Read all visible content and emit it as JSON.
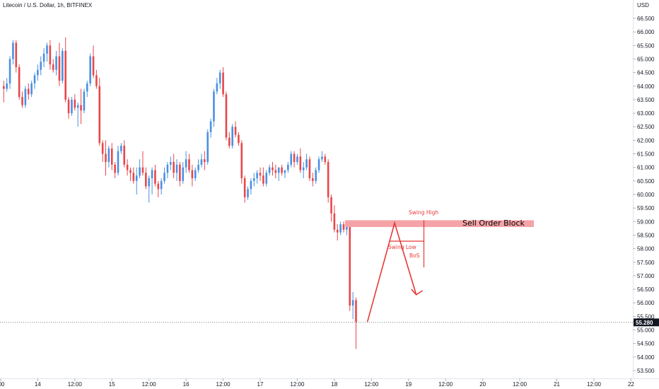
{
  "header": {
    "symbol_line": "Litecoin / U.S. Dollar, 1h, BITFINEX"
  },
  "colors": {
    "up": "#4a90e2",
    "down": "#e8474a",
    "annotation": "#e53935",
    "order_block": "#f5a3a8"
  },
  "chart_data": {
    "type": "candlestick",
    "y_axis": {
      "unit_label": "USD",
      "min": 53.5,
      "max": 66.5,
      "ticks": [
        "53.500",
        "54.000",
        "54.500",
        "55.000",
        "55.500",
        "56.000",
        "56.500",
        "57.000",
        "57.500",
        "58.000",
        "58.500",
        "59.000",
        "59.500",
        "60.000",
        "60.500",
        "61.000",
        "61.500",
        "62.000",
        "62.500",
        "63.000",
        "63.500",
        "64.000",
        "64.500",
        "65.000",
        "65.500",
        "66.000",
        "66.500"
      ]
    },
    "x_axis": {
      "labels": [
        {
          "text": ":00",
          "bar": -1
        },
        {
          "text": "14",
          "bar": 11
        },
        {
          "text": "12:00",
          "bar": 23
        },
        {
          "text": "15",
          "bar": 35
        },
        {
          "text": "12:00",
          "bar": 47
        },
        {
          "text": "16",
          "bar": 59
        },
        {
          "text": "12:00",
          "bar": 71
        },
        {
          "text": "17",
          "bar": 83
        },
        {
          "text": "12:00",
          "bar": 95
        },
        {
          "text": "18",
          "bar": 107
        },
        {
          "text": "12:00",
          "bar": 119
        },
        {
          "text": "19",
          "bar": 131
        },
        {
          "text": "12:00",
          "bar": 143
        },
        {
          "text": "20",
          "bar": 155
        },
        {
          "text": "12:00",
          "bar": 167
        },
        {
          "text": "21",
          "bar": 179
        },
        {
          "text": "12:00",
          "bar": 191
        },
        {
          "text": "22",
          "bar": 203
        }
      ]
    },
    "current_price": 55.28,
    "current_price_label": "55.280",
    "candles": [
      [
        64.0,
        64.2,
        63.4,
        63.9
      ],
      [
        63.9,
        64.3,
        63.8,
        64.1
      ],
      [
        64.1,
        65.1,
        63.9,
        65.0
      ],
      [
        65.0,
        65.7,
        64.8,
        65.6
      ],
      [
        65.6,
        65.7,
        64.5,
        64.7
      ],
      [
        64.7,
        64.8,
        63.5,
        63.6
      ],
      [
        63.6,
        63.8,
        63.2,
        63.3
      ],
      [
        63.3,
        64.0,
        63.2,
        63.9
      ],
      [
        63.9,
        64.1,
        63.5,
        63.7
      ],
      [
        63.7,
        64.2,
        63.6,
        64.1
      ],
      [
        64.1,
        64.5,
        63.9,
        64.4
      ],
      [
        64.4,
        64.8,
        64.2,
        64.6
      ],
      [
        64.6,
        65.1,
        64.4,
        64.9
      ],
      [
        64.9,
        65.4,
        64.7,
        65.2
      ],
      [
        65.2,
        65.6,
        64.9,
        65.5
      ],
      [
        65.5,
        65.7,
        64.6,
        64.8
      ],
      [
        64.8,
        65.0,
        64.5,
        64.6
      ],
      [
        64.6,
        65.3,
        64.4,
        65.1
      ],
      [
        65.1,
        65.6,
        64.0,
        64.2
      ],
      [
        64.2,
        65.4,
        64.1,
        65.3
      ],
      [
        65.3,
        65.8,
        63.4,
        63.5
      ],
      [
        63.5,
        63.6,
        62.8,
        63.0
      ],
      [
        63.0,
        63.6,
        62.9,
        63.5
      ],
      [
        63.5,
        63.7,
        63.1,
        63.2
      ],
      [
        63.2,
        63.4,
        62.5,
        63.3
      ],
      [
        63.3,
        63.9,
        62.6,
        63.1
      ],
      [
        63.1,
        63.9,
        63.0,
        63.8
      ],
      [
        63.8,
        64.2,
        63.6,
        64.1
      ],
      [
        64.1,
        65.2,
        64.0,
        65.1
      ],
      [
        65.1,
        65.5,
        64.3,
        64.4
      ],
      [
        64.4,
        64.6,
        63.9,
        64.0
      ],
      [
        64.0,
        64.3,
        61.8,
        61.9
      ],
      [
        61.9,
        62.0,
        61.2,
        61.5
      ],
      [
        61.5,
        62.0,
        60.7,
        61.2
      ],
      [
        61.2,
        61.8,
        61.0,
        61.7
      ],
      [
        61.7,
        61.9,
        60.9,
        61.1
      ],
      [
        61.1,
        61.2,
        60.6,
        60.8
      ],
      [
        60.8,
        61.8,
        60.7,
        61.6
      ],
      [
        61.6,
        61.9,
        61.5,
        61.8
      ],
      [
        61.8,
        62.0,
        61.0,
        61.1
      ],
      [
        61.1,
        61.3,
        60.7,
        60.9
      ],
      [
        60.9,
        61.0,
        60.5,
        60.8
      ],
      [
        60.8,
        61.0,
        60.4,
        60.5
      ],
      [
        60.5,
        61.0,
        60.0,
        60.7
      ],
      [
        60.7,
        61.3,
        60.6,
        61.0
      ],
      [
        61.0,
        61.6,
        60.7,
        60.8
      ],
      [
        60.8,
        61.0,
        60.2,
        60.3
      ],
      [
        60.3,
        60.7,
        59.7,
        60.6
      ],
      [
        60.6,
        61.0,
        60.0,
        60.9
      ],
      [
        60.9,
        61.1,
        60.3,
        60.4
      ],
      [
        60.4,
        60.5,
        59.9,
        60.2
      ],
      [
        60.2,
        60.6,
        60.0,
        60.5
      ],
      [
        60.5,
        61.0,
        60.4,
        60.8
      ],
      [
        60.8,
        61.2,
        60.6,
        61.1
      ],
      [
        61.1,
        61.4,
        60.9,
        61.2
      ],
      [
        61.2,
        61.5,
        60.6,
        60.8
      ],
      [
        60.8,
        61.3,
        60.5,
        61.1
      ],
      [
        61.1,
        61.2,
        60.3,
        60.5
      ],
      [
        60.5,
        61.2,
        60.4,
        61.0
      ],
      [
        61.0,
        61.6,
        60.8,
        61.3
      ],
      [
        61.3,
        61.5,
        60.8,
        60.9
      ],
      [
        60.9,
        61.1,
        60.3,
        60.6
      ],
      [
        60.6,
        61.0,
        60.5,
        60.9
      ],
      [
        60.9,
        61.3,
        60.8,
        61.1
      ],
      [
        61.1,
        61.5,
        61.0,
        61.3
      ],
      [
        61.3,
        61.6,
        60.9,
        61.2
      ],
      [
        61.2,
        62.4,
        61.1,
        62.3
      ],
      [
        62.3,
        62.8,
        62.1,
        62.7
      ],
      [
        62.7,
        63.9,
        62.5,
        63.8
      ],
      [
        63.8,
        64.3,
        63.7,
        64.1
      ],
      [
        64.1,
        64.6,
        63.9,
        64.5
      ],
      [
        64.5,
        64.7,
        63.6,
        63.7
      ],
      [
        63.7,
        63.8,
        62.0,
        62.1
      ],
      [
        62.1,
        62.3,
        61.7,
        61.8
      ],
      [
        61.8,
        62.6,
        61.7,
        62.5
      ],
      [
        62.5,
        62.7,
        62.1,
        62.2
      ],
      [
        62.2,
        62.3,
        61.8,
        61.9
      ],
      [
        61.9,
        62.0,
        60.4,
        60.6
      ],
      [
        60.6,
        60.7,
        59.7,
        59.9
      ],
      [
        59.9,
        60.3,
        59.8,
        60.2
      ],
      [
        60.2,
        60.6,
        60.0,
        60.5
      ],
      [
        60.5,
        60.8,
        60.3,
        60.6
      ],
      [
        60.6,
        60.9,
        60.4,
        60.8
      ],
      [
        60.8,
        61.0,
        60.5,
        60.7
      ],
      [
        60.7,
        61.0,
        60.3,
        60.4
      ],
      [
        60.4,
        60.9,
        60.3,
        60.8
      ],
      [
        60.8,
        61.1,
        60.7,
        61.0
      ],
      [
        61.0,
        61.2,
        60.7,
        60.9
      ],
      [
        60.9,
        61.1,
        60.6,
        60.8
      ],
      [
        60.8,
        61.0,
        60.5,
        61.0
      ],
      [
        61.0,
        61.1,
        60.7,
        60.8
      ],
      [
        60.8,
        60.9,
        60.6,
        60.9
      ],
      [
        60.9,
        61.2,
        60.8,
        61.1
      ],
      [
        61.1,
        61.6,
        61.0,
        61.5
      ],
      [
        61.5,
        61.6,
        61.0,
        61.2
      ],
      [
        61.2,
        61.5,
        61.1,
        61.4
      ],
      [
        61.4,
        61.7,
        60.8,
        60.9
      ],
      [
        60.9,
        61.2,
        60.6,
        61.0
      ],
      [
        61.0,
        61.5,
        60.9,
        61.3
      ],
      [
        61.3,
        61.4,
        60.5,
        60.6
      ],
      [
        60.6,
        60.8,
        60.3,
        60.5
      ],
      [
        60.5,
        61.0,
        60.4,
        60.9
      ],
      [
        60.9,
        61.4,
        60.8,
        61.3
      ],
      [
        61.3,
        61.6,
        61.2,
        61.4
      ],
      [
        61.4,
        61.5,
        61.1,
        61.2
      ],
      [
        61.2,
        61.3,
        59.7,
        59.9
      ],
      [
        59.9,
        60.0,
        59.0,
        59.3
      ],
      [
        59.3,
        59.6,
        58.6,
        58.7
      ],
      [
        58.7,
        58.9,
        58.3,
        58.6
      ],
      [
        58.6,
        59.0,
        58.5,
        58.9
      ],
      [
        58.9,
        59.0,
        58.6,
        58.7
      ],
      [
        58.7,
        59.0,
        58.5,
        58.9
      ],
      [
        58.9,
        59.0,
        55.7,
        55.9
      ],
      [
        55.9,
        56.4,
        55.4,
        56.1
      ],
      [
        56.1,
        56.2,
        54.3,
        55.3
      ]
    ],
    "annotations": {
      "swing_high_label": "Swing High",
      "swing_low_label": "Swing Low",
      "bos_label": "BoS",
      "order_block_label": "Sell Order Block",
      "order_block_top": 59.05,
      "order_block_bottom": 58.8,
      "swing_low_level": 58.12,
      "projection_path": [
        [
          117.7,
          55.3
        ],
        [
          126.5,
          58.95
        ],
        [
          133.5,
          56.3
        ]
      ]
    }
  }
}
